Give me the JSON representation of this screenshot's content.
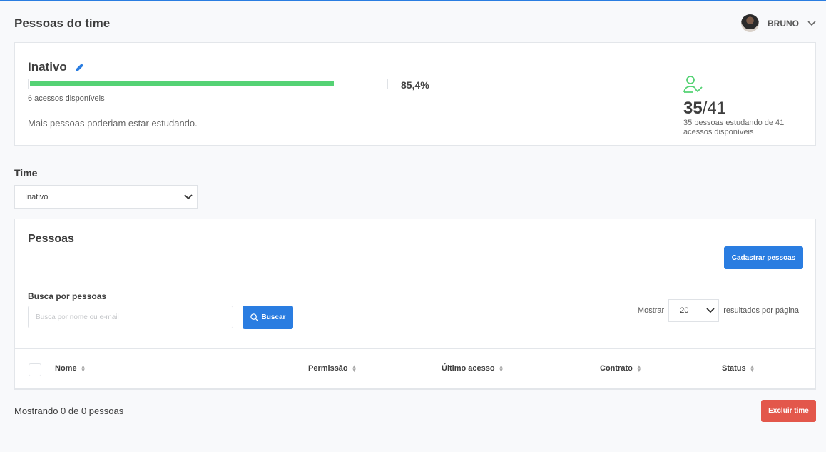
{
  "page": {
    "title": "Pessoas do time"
  },
  "user": {
    "name": "BRUNO"
  },
  "team_card": {
    "name": "Inativo",
    "progress_percent": 85.4,
    "progress_label": "85,4%",
    "available": "6 acessos disponíveis",
    "message": "Mais pessoas poderiam estar estudando.",
    "studying": "35",
    "total": "/41",
    "stat_desc": "35 pessoas estudando de 41 acessos disponíveis",
    "colors": {
      "progress": "#55d274",
      "icon": "#55d274"
    }
  },
  "time_filter": {
    "label": "Time",
    "selected": "Inativo"
  },
  "people": {
    "title": "Pessoas",
    "register_button": "Cadastrar pessoas",
    "search_label": "Busca por pessoas",
    "search_placeholder": "Busca por nome ou e-mail",
    "search_button": "Buscar",
    "show_label": "Mostrar",
    "page_size": "20",
    "per_page_label": "resultados por página",
    "columns": [
      "Nome",
      "Permissão",
      "Último acesso",
      "Contrato",
      "Status"
    ]
  },
  "footer": {
    "showing": "Mostrando 0 de 0 pessoas",
    "delete_button": "Excluir time"
  },
  "colors": {
    "accent": "#2a7de1",
    "danger": "#e3574b"
  }
}
